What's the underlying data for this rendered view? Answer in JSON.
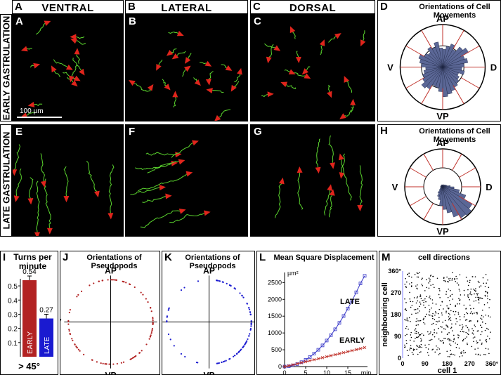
{
  "headers": {
    "ventral": "VENTRAL",
    "lateral": "LATERAL",
    "dorsal": "DORSAL"
  },
  "rows": {
    "early": "EARLY GASTRULATION",
    "late": "LATE GASTRULATION"
  },
  "letters": {
    "A": "A",
    "B": "B",
    "C": "C",
    "D": "D",
    "E": "E",
    "F": "F",
    "G": "G",
    "H": "H",
    "I": "I",
    "J": "J",
    "K": "K",
    "L": "L",
    "M": "M"
  },
  "scale_bar": "100 µm",
  "rose": {
    "title": "Orientations of Cell Movements",
    "labels": {
      "top": "AP",
      "bottom": "VP",
      "left": "V",
      "right": "D"
    },
    "color": "#5b6796",
    "early": [
      0.42,
      0.5,
      0.58,
      0.48,
      0.62,
      0.7,
      0.55,
      0.6,
      0.5,
      0.45,
      0.52,
      0.4,
      0.45,
      0.5,
      0.55,
      0.6,
      0.65,
      0.7,
      0.58,
      0.5,
      0.48,
      0.6,
      0.65,
      0.55,
      0.5,
      0.45,
      0.4,
      0.5,
      0.55,
      0.6,
      0.5,
      0.45,
      0.55,
      0.5,
      0.6,
      0.45
    ],
    "late": [
      0.06,
      0.05,
      0.06,
      0.05,
      0.07,
      0.08,
      0.1,
      0.12,
      0.2,
      0.3,
      0.45,
      0.65,
      0.9,
      0.98,
      0.95,
      0.85,
      0.7,
      0.6,
      0.5,
      0.35,
      0.28,
      0.2,
      0.12,
      0.08,
      0.06,
      0.05,
      0.06,
      0.05,
      0.06,
      0.05,
      0.05,
      0.06,
      0.05,
      0.06,
      0.05,
      0.05
    ]
  },
  "turns": {
    "title": "Turns per minute",
    "footer": "> 45°",
    "ticks": [
      "0.5",
      "0.4",
      "0.3",
      "0.2",
      "0.1"
    ],
    "bars": [
      {
        "name": "EARLY",
        "value": 0.54,
        "label": "0.54",
        "color": "#b22222"
      },
      {
        "name": "LATE",
        "value": 0.27,
        "label": "0.27",
        "color": "#1a1ad0"
      }
    ]
  },
  "pseudopods": {
    "title": "Orientations of Pseudopods",
    "labels": {
      "top": "AP",
      "bottom": "VP",
      "left": "V",
      "right": "D"
    },
    "early_color": "#b22222",
    "late_color": "#1a1ad0"
  },
  "msd": {
    "title": "Mean Square Displacement",
    "unit": "µm²",
    "x_unit": "min",
    "yticks": [
      "2500",
      "2000",
      "1500",
      "1000",
      "500",
      "0"
    ],
    "xticks": [
      "0",
      "5",
      "10",
      "15"
    ],
    "late_label": "LATE",
    "early_label": "EARLY",
    "chart_data": {
      "type": "line",
      "x": [
        0,
        1,
        2,
        3,
        4,
        5,
        6,
        7,
        8,
        9,
        10,
        11,
        12,
        13,
        14,
        15,
        16,
        17,
        18,
        19
      ],
      "series": [
        {
          "name": "LATE",
          "values": [
            0,
            10,
            35,
            75,
            130,
            200,
            285,
            385,
            500,
            630,
            775,
            935,
            1110,
            1300,
            1505,
            1725,
            1960,
            2210,
            2475,
            2700
          ]
        },
        {
          "name": "EARLY",
          "values": [
            0,
            25,
            55,
            85,
            115,
            145,
            175,
            205,
            235,
            265,
            295,
            325,
            355,
            385,
            415,
            445,
            475,
            505,
            535,
            565
          ]
        }
      ],
      "ylim": [
        0,
        2800
      ],
      "xlim": [
        0,
        19
      ]
    }
  },
  "cell_dirs": {
    "title": "cell directions",
    "xlabel": "cell 1",
    "ylabel": "neighbouring cell",
    "xticks": [
      "0",
      "90",
      "180",
      "270",
      "360°"
    ],
    "yticks": [
      "360°",
      "270",
      "180",
      "90",
      "0"
    ]
  }
}
